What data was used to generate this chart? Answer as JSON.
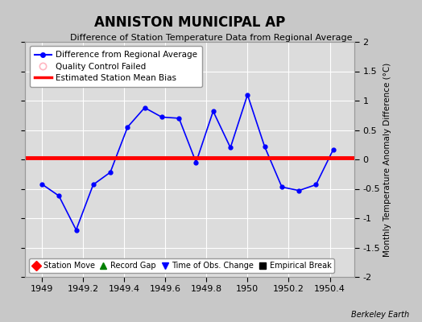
{
  "title": "ANNISTON MUNICIPAL AP",
  "subtitle": "Difference of Station Temperature Data from Regional Average",
  "ylabel_right": "Monthly Temperature Anomaly Difference (°C)",
  "watermark": "Berkeley Earth",
  "xlim": [
    1948.92,
    1950.52
  ],
  "ylim": [
    -2,
    2
  ],
  "yticks": [
    -2,
    -1.5,
    -1,
    -0.5,
    0,
    0.5,
    1,
    1.5,
    2
  ],
  "xticks": [
    1949,
    1949.2,
    1949.4,
    1949.6,
    1949.8,
    1950,
    1950.2,
    1950.4
  ],
  "xtick_labels": [
    "1949",
    "1949.2",
    "1949.4",
    "1949.6",
    "1949.8",
    "1950",
    "1950.2",
    "1950.4"
  ],
  "ytick_labels": [
    "-2",
    "-1.5",
    "-1",
    "-0.5",
    "0",
    "0.5",
    "1",
    "1.5",
    "2"
  ],
  "x_data": [
    1949.0,
    1949.083,
    1949.167,
    1949.25,
    1949.333,
    1949.417,
    1949.5,
    1949.583,
    1949.667,
    1949.75,
    1949.833,
    1949.917,
    1950.0,
    1950.083,
    1950.167,
    1950.25,
    1950.333,
    1950.417
  ],
  "y_data": [
    -0.42,
    -0.62,
    -1.2,
    -0.43,
    -0.22,
    0.55,
    0.88,
    0.72,
    0.7,
    -0.05,
    0.82,
    0.2,
    1.1,
    0.22,
    -0.47,
    -0.53,
    -0.43,
    0.17
  ],
  "line_color": "#0000FF",
  "marker_color": "#0000FF",
  "bias_line_color": "#FF0000",
  "bias_value": 0.03,
  "fig_bg_color": "#C8C8C8",
  "plot_bg_color": "#DCDCDC",
  "grid_color": "#FFFFFF",
  "legend1_items": [
    {
      "label": "Difference from Regional Average",
      "color": "#0000FF"
    },
    {
      "label": "Quality Control Failed",
      "color": "#FFB6C1"
    },
    {
      "label": "Estimated Station Mean Bias",
      "color": "#FF0000"
    }
  ],
  "legend2_items": [
    {
      "label": "Station Move",
      "color": "#FF0000",
      "marker": "D"
    },
    {
      "label": "Record Gap",
      "color": "#008000",
      "marker": "^"
    },
    {
      "label": "Time of Obs. Change",
      "color": "#0000FF",
      "marker": "v"
    },
    {
      "label": "Empirical Break",
      "color": "#000000",
      "marker": "s"
    }
  ]
}
